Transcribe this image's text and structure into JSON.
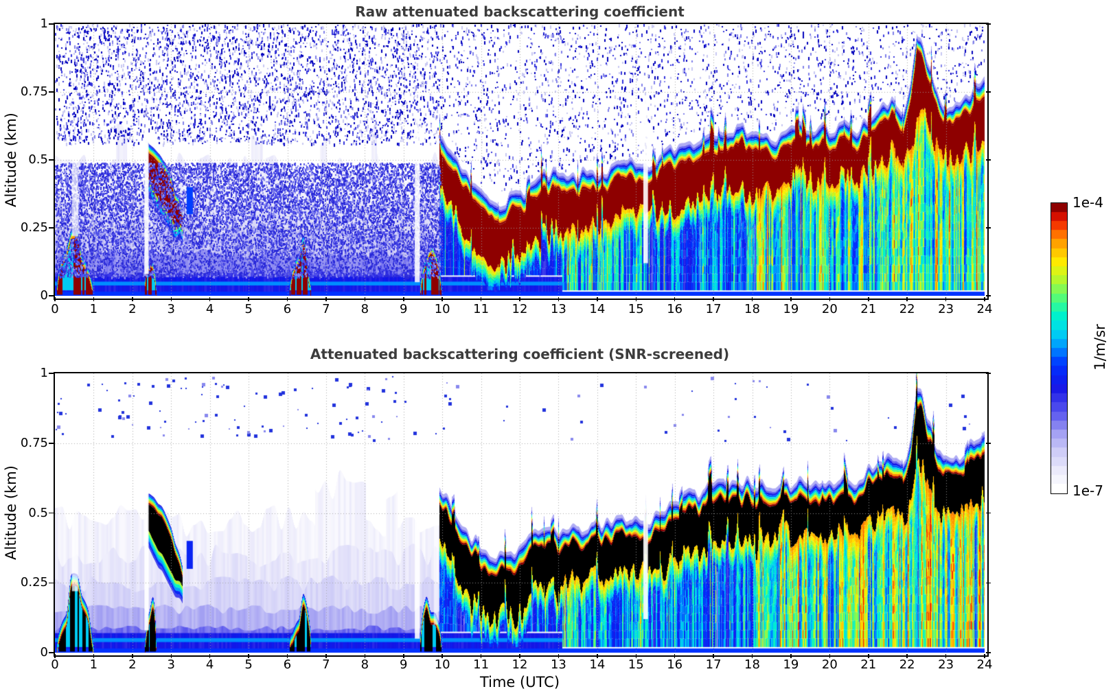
{
  "figure": {
    "panels": [
      {
        "title": "Raw attenuated backscattering coefficient",
        "ylabel": "Altitude (km)"
      },
      {
        "title": "Attenuated backscattering coefficient (SNR-screened)",
        "ylabel": "Altitude (km)"
      }
    ],
    "xlabel": "Time (UTC)",
    "colorbar": {
      "top_label": "1e-4",
      "bottom_label": "1e-7",
      "units": "1/m/sr"
    }
  },
  "chart_data": [
    {
      "type": "heatmap",
      "title": "Raw attenuated backscattering coefficient",
      "xlabel": "Time (UTC)",
      "ylabel": "Altitude (km)",
      "x_range": [
        0,
        24
      ],
      "y_range": [
        0,
        1
      ],
      "xticks": [
        0,
        1,
        2,
        3,
        4,
        5,
        6,
        7,
        8,
        9,
        10,
        11,
        12,
        13,
        14,
        15,
        16,
        17,
        18,
        19,
        20,
        21,
        22,
        23,
        24
      ],
      "yticks": [
        0,
        0.25,
        0.5,
        0.75,
        1
      ],
      "value_min": 1e-07,
      "value_max": 0.0001,
      "value_units": "1/m/sr",
      "value_scale": "log10",
      "grid": true,
      "seed": 7,
      "over_range_color": "#8e0000",
      "haze_light": false,
      "colormap_stops": [
        [
          0.0,
          "#ffffff"
        ],
        [
          0.06,
          "#ecebfb"
        ],
        [
          0.13,
          "#cfcdf7"
        ],
        [
          0.2,
          "#a09df2"
        ],
        [
          0.27,
          "#5a57ee"
        ],
        [
          0.36,
          "#1414e6"
        ],
        [
          0.44,
          "#0033ff"
        ],
        [
          0.5,
          "#0090ff"
        ],
        [
          0.56,
          "#00d8f0"
        ],
        [
          0.62,
          "#00f5c8"
        ],
        [
          0.68,
          "#55fb77"
        ],
        [
          0.74,
          "#b5f72e"
        ],
        [
          0.8,
          "#fff200"
        ],
        [
          0.86,
          "#ffb300"
        ],
        [
          0.92,
          "#ff5500"
        ],
        [
          0.96,
          "#e81500"
        ],
        [
          1.0,
          "#8e0000"
        ]
      ],
      "noise": {
        "sky_count": 26000,
        "haze_count": 16000,
        "p_pre": 0.8,
        "p_post": 0.34
      },
      "features": {
        "layer": {
          "times": [
            9.92,
            10.15,
            10.4,
            10.7,
            11.0,
            11.25,
            11.5,
            11.75,
            12.0,
            12.3,
            12.6,
            12.9,
            13.2,
            13.5,
            13.8,
            14.1,
            14.4,
            14.7,
            15.0,
            15.3,
            15.6,
            15.9,
            16.2,
            16.5,
            16.8,
            17.1,
            17.4,
            17.7,
            18.0,
            18.3,
            18.6,
            18.9,
            19.2,
            19.5,
            19.8,
            20.1,
            20.4,
            20.7,
            21.0,
            21.3,
            21.6,
            21.9,
            22.1,
            22.25,
            22.45,
            22.7,
            22.95,
            23.2,
            23.5,
            23.75,
            24.0
          ],
          "top_km": [
            0.58,
            0.53,
            0.47,
            0.42,
            0.37,
            0.35,
            0.34,
            0.35,
            0.37,
            0.4,
            0.43,
            0.44,
            0.42,
            0.43,
            0.45,
            0.44,
            0.46,
            0.48,
            0.47,
            0.45,
            0.5,
            0.53,
            0.55,
            0.56,
            0.58,
            0.6,
            0.61,
            0.6,
            0.61,
            0.58,
            0.56,
            0.59,
            0.62,
            0.59,
            0.62,
            0.6,
            0.62,
            0.59,
            0.64,
            0.68,
            0.7,
            0.66,
            0.78,
            0.96,
            0.88,
            0.75,
            0.68,
            0.67,
            0.72,
            0.76,
            0.79
          ],
          "core_depth_km": [
            0.1,
            0.13,
            0.15,
            0.16,
            0.16,
            0.15,
            0.14,
            0.15,
            0.16,
            0.17,
            0.16,
            0.15,
            0.13,
            0.13,
            0.14,
            0.13,
            0.12,
            0.13,
            0.12,
            0.1,
            0.13,
            0.14,
            0.15,
            0.14,
            0.15,
            0.16,
            0.15,
            0.14,
            0.15,
            0.13,
            0.11,
            0.12,
            0.13,
            0.12,
            0.13,
            0.12,
            0.13,
            0.11,
            0.13,
            0.14,
            0.13,
            0.12,
            0.16,
            0.22,
            0.18,
            0.15,
            0.13,
            0.12,
            0.14,
            0.15,
            0.15
          ]
        },
        "elevated_blob": {
          "times": [
            2.4,
            2.55,
            2.7,
            2.85,
            3.0,
            3.15,
            3.3
          ],
          "top_km": [
            0.57,
            0.555,
            0.53,
            0.49,
            0.44,
            0.38,
            0.31
          ],
          "depth_km": [
            0.09,
            0.12,
            0.13,
            0.13,
            0.12,
            0.08,
            0.03
          ]
        },
        "surface_events": [
          {
            "t0": 0.05,
            "t1": 1.0,
            "max_top_km": 0.22
          },
          {
            "t0": 2.32,
            "t1": 2.62,
            "max_top_km": 0.2
          },
          {
            "t0": 6.05,
            "t1": 6.62,
            "max_top_km": 0.18
          },
          {
            "t0": 9.42,
            "t1": 9.98,
            "max_top_km": 0.17
          }
        ],
        "haze": {
          "t_end": 9.95,
          "bands": [
            {
              "top_km": 0.46,
              "v": 0.05
            },
            {
              "top_km": 0.34,
              "v": 0.09
            },
            {
              "top_km": 0.24,
              "v": 0.14
            },
            {
              "top_km": 0.15,
              "v": 0.22
            },
            {
              "top_km": 0.085,
              "v": 0.31
            }
          ]
        },
        "substreaks": [
          {
            "t0": 9.95,
            "t1": 13.1,
            "base": 0.4,
            "var": 0.1
          },
          {
            "t0": 13.1,
            "t1": 15.25,
            "base": 0.52,
            "var": 0.18
          },
          {
            "t0": 15.25,
            "t1": 18.1,
            "base": 0.46,
            "var": 0.15
          },
          {
            "t0": 18.1,
            "t1": 21.5,
            "base": 0.62,
            "var": 0.22
          },
          {
            "t0": 21.5,
            "t1": 24.01,
            "base": 0.66,
            "var": 0.22
          }
        ],
        "surface_band": {
          "t_end": 13.1,
          "top_km": 0.07,
          "v": 0.36,
          "line_km": 0.045,
          "line_v": 0.5
        },
        "spots": [
          {
            "t0": 3.4,
            "t1": 3.56,
            "a0": 0.3,
            "a1": 0.4,
            "v": 0.45
          }
        ],
        "gaps": [
          {
            "t0": 0.44,
            "t1": 0.6,
            "a0": 0.22,
            "a1": 0.52,
            "alpha": 0.7
          },
          {
            "t0": 2.31,
            "t1": 2.42,
            "a0": 0.08,
            "a1": 0.62,
            "alpha": 0.92
          },
          {
            "t0": 9.29,
            "t1": 9.42,
            "a0": 0.05,
            "a1": 0.66,
            "alpha": 0.88
          },
          {
            "t0": 15.19,
            "t1": 15.31,
            "a0": 0.12,
            "a1": 0.72,
            "alpha": 0.9
          }
        ]
      }
    },
    {
      "type": "heatmap",
      "title": "Attenuated backscattering coefficient (SNR-screened)",
      "xlabel": "Time (UTC)",
      "ylabel": "Altitude (km)",
      "x_range": [
        0,
        24
      ],
      "y_range": [
        0,
        1
      ],
      "xticks": [
        0,
        1,
        2,
        3,
        4,
        5,
        6,
        7,
        8,
        9,
        10,
        11,
        12,
        13,
        14,
        15,
        16,
        17,
        18,
        19,
        20,
        21,
        22,
        23,
        24
      ],
      "yticks": [
        0,
        0.25,
        0.5,
        0.75,
        1
      ],
      "value_min": 1e-07,
      "value_max": 0.0001,
      "value_units": "1/m/sr",
      "value_scale": "log10",
      "grid": true,
      "seed": 11,
      "over_range_color": "#000000",
      "haze_light": true,
      "colormap_stops": [
        [
          0.0,
          "#ffffff"
        ],
        [
          0.06,
          "#ecebfb"
        ],
        [
          0.13,
          "#cfcdf7"
        ],
        [
          0.2,
          "#a09df2"
        ],
        [
          0.27,
          "#5a57ee"
        ],
        [
          0.36,
          "#1414e6"
        ],
        [
          0.44,
          "#0033ff"
        ],
        [
          0.5,
          "#0090ff"
        ],
        [
          0.56,
          "#00d8f0"
        ],
        [
          0.62,
          "#00f5c8"
        ],
        [
          0.68,
          "#55fb77"
        ],
        [
          0.74,
          "#b5f72e"
        ],
        [
          0.8,
          "#fff200"
        ],
        [
          0.86,
          "#ffb300"
        ],
        [
          0.92,
          "#ff5500"
        ],
        [
          0.96,
          "#e81500"
        ],
        [
          1.0,
          "#8e0000"
        ]
      ],
      "dots": {
        "count": 150
      },
      "features": {
        "layer": {
          "times": [
            9.92,
            10.15,
            10.4,
            10.7,
            11.0,
            11.25,
            11.5,
            11.75,
            12.0,
            12.3,
            12.6,
            12.9,
            13.2,
            13.5,
            13.8,
            14.1,
            14.4,
            14.7,
            15.0,
            15.3,
            15.6,
            15.9,
            16.2,
            16.5,
            16.8,
            17.1,
            17.4,
            17.7,
            18.0,
            18.3,
            18.6,
            18.9,
            19.2,
            19.5,
            19.8,
            20.1,
            20.4,
            20.7,
            21.0,
            21.3,
            21.6,
            21.9,
            22.1,
            22.25,
            22.45,
            22.7,
            22.95,
            23.2,
            23.5,
            23.75,
            24.0
          ],
          "top_km": [
            0.58,
            0.53,
            0.47,
            0.42,
            0.37,
            0.35,
            0.34,
            0.35,
            0.37,
            0.4,
            0.43,
            0.44,
            0.42,
            0.43,
            0.45,
            0.44,
            0.46,
            0.48,
            0.47,
            0.45,
            0.5,
            0.53,
            0.55,
            0.56,
            0.58,
            0.6,
            0.61,
            0.6,
            0.61,
            0.58,
            0.56,
            0.59,
            0.62,
            0.59,
            0.62,
            0.6,
            0.62,
            0.59,
            0.64,
            0.68,
            0.7,
            0.66,
            0.78,
            0.96,
            0.88,
            0.75,
            0.68,
            0.67,
            0.72,
            0.76,
            0.79
          ],
          "core_depth_km": [
            0.1,
            0.13,
            0.15,
            0.16,
            0.16,
            0.15,
            0.14,
            0.15,
            0.16,
            0.17,
            0.16,
            0.15,
            0.13,
            0.13,
            0.14,
            0.13,
            0.12,
            0.13,
            0.12,
            0.1,
            0.13,
            0.14,
            0.15,
            0.14,
            0.15,
            0.16,
            0.15,
            0.14,
            0.15,
            0.13,
            0.11,
            0.12,
            0.13,
            0.12,
            0.13,
            0.12,
            0.13,
            0.11,
            0.13,
            0.14,
            0.13,
            0.12,
            0.16,
            0.22,
            0.18,
            0.15,
            0.13,
            0.12,
            0.14,
            0.15,
            0.15
          ]
        },
        "elevated_blob": {
          "times": [
            2.4,
            2.55,
            2.7,
            2.85,
            3.0,
            3.15,
            3.3
          ],
          "top_km": [
            0.57,
            0.555,
            0.53,
            0.49,
            0.44,
            0.38,
            0.31
          ],
          "depth_km": [
            0.09,
            0.12,
            0.13,
            0.13,
            0.12,
            0.08,
            0.03
          ]
        },
        "surface_events": [
          {
            "t0": 0.05,
            "t1": 1.0,
            "max_top_km": 0.22
          },
          {
            "t0": 2.32,
            "t1": 2.62,
            "max_top_km": 0.2
          },
          {
            "t0": 6.05,
            "t1": 6.62,
            "max_top_km": 0.18
          },
          {
            "t0": 9.42,
            "t1": 9.98,
            "max_top_km": 0.17
          }
        ],
        "haze": {
          "t_end": 9.95,
          "bands": [
            {
              "top_km": 0.46,
              "v": 0.05
            },
            {
              "top_km": 0.34,
              "v": 0.09
            },
            {
              "top_km": 0.24,
              "v": 0.14
            },
            {
              "top_km": 0.15,
              "v": 0.22
            },
            {
              "top_km": 0.085,
              "v": 0.31
            }
          ]
        },
        "substreaks": [
          {
            "t0": 9.95,
            "t1": 13.1,
            "base": 0.42,
            "var": 0.1
          },
          {
            "t0": 13.1,
            "t1": 15.25,
            "base": 0.52,
            "var": 0.18
          },
          {
            "t0": 15.25,
            "t1": 18.1,
            "base": 0.46,
            "var": 0.15
          },
          {
            "t0": 18.1,
            "t1": 21.5,
            "base": 0.63,
            "var": 0.22
          },
          {
            "t0": 21.5,
            "t1": 24.01,
            "base": 0.66,
            "var": 0.22
          }
        ],
        "surface_band": {
          "t_end": 13.1,
          "top_km": 0.07,
          "v": 0.36,
          "line_km": 0.045,
          "line_v": 0.5
        },
        "spots": [
          {
            "t0": 3.4,
            "t1": 3.56,
            "a0": 0.3,
            "a1": 0.4,
            "v": 0.4
          }
        ],
        "gaps": [
          {
            "t0": 0.44,
            "t1": 0.6,
            "a0": 0.22,
            "a1": 0.52,
            "alpha": 0.75
          },
          {
            "t0": 2.31,
            "t1": 2.42,
            "a0": 0.08,
            "a1": 0.62,
            "alpha": 0.92
          },
          {
            "t0": 9.29,
            "t1": 9.42,
            "a0": 0.05,
            "a1": 0.66,
            "alpha": 0.9
          },
          {
            "t0": 9.78,
            "t1": 9.9,
            "a0": 0.1,
            "a1": 0.62,
            "alpha": 0.6
          },
          {
            "t0": 15.19,
            "t1": 15.31,
            "a0": 0.12,
            "a1": 0.72,
            "alpha": 0.9
          }
        ]
      }
    }
  ]
}
